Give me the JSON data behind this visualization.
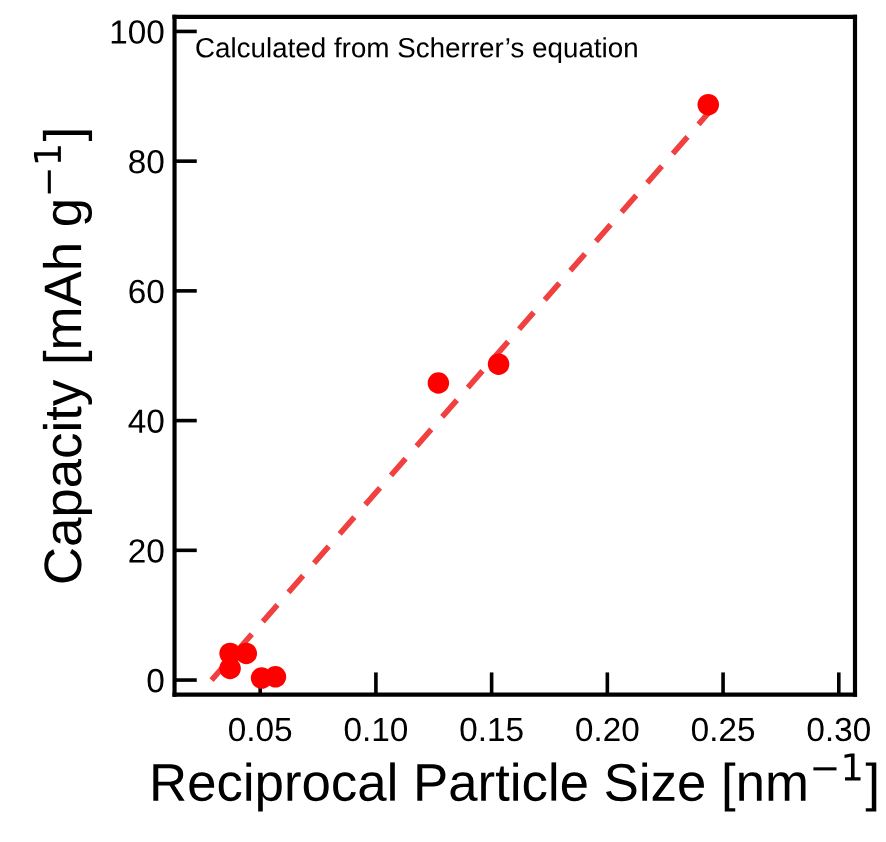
{
  "chart_data": {
    "type": "scatter",
    "xlabel": "Reciprocal Particle Size [nm$^{−1}$]",
    "ylabel": "Capacity [mAh g$^{−1}$]",
    "annotations": [
      "Calculated from Scherrer’s equation"
    ],
    "xlim": [
      0.013,
      0.307
    ],
    "ylim": [
      -2.25,
      102.25
    ],
    "xticks": [
      {
        "value": 0.05,
        "label": "0.05"
      },
      {
        "value": 0.1,
        "label": "0.10"
      },
      {
        "value": 0.15,
        "label": "0.15"
      },
      {
        "value": 0.2,
        "label": "0.20"
      },
      {
        "value": 0.25,
        "label": "0.25"
      },
      {
        "value": 0.3,
        "label": "0.30"
      }
    ],
    "yticks": [
      0,
      20,
      40,
      60,
      80,
      100
    ],
    "grid": false,
    "legend": false,
    "series": [
      {
        "color": "#ff0000",
        "marker": "circle",
        "x": [
          0.037,
          0.037,
          0.044,
          0.0506,
          0.0566,
          0.127,
          0.153,
          0.2436
        ],
        "values": [
          4.1,
          1.8,
          4.1,
          0.3,
          0.5,
          45.8,
          48.7,
          88.7
        ]
      },
      {
        "type": "line",
        "color": "#f04040",
        "line_style": "dashed",
        "marker": "none",
        "x": [
          0.029,
          0.2436
        ],
        "values": [
          0,
          87.4
        ]
      }
    ]
  }
}
